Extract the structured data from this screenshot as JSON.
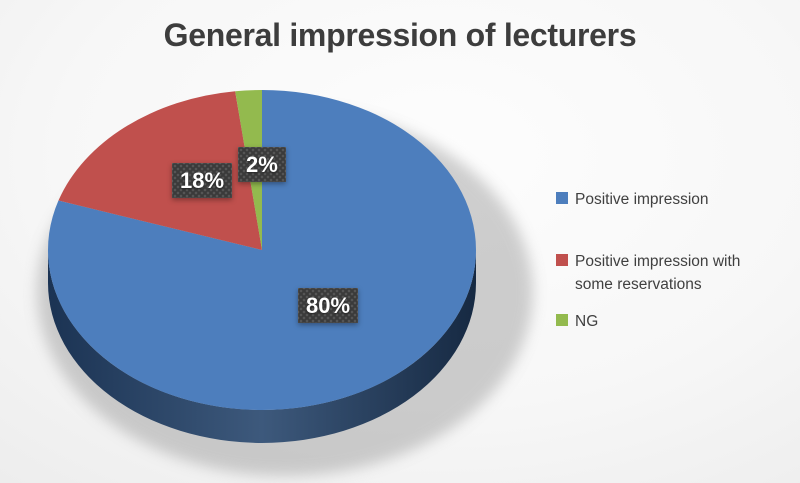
{
  "chart_data": {
    "type": "pie",
    "effect": "3d",
    "title": "General impression of lecturers",
    "legend_position": "right",
    "series": [
      {
        "name": "Positive impression",
        "value": 80,
        "label": "80%",
        "color": "#4d7ebd"
      },
      {
        "name": "Positive impression with some reservations",
        "value": 18,
        "label": "18%",
        "color": "#c0504d"
      },
      {
        "name": "NG",
        "value": 2,
        "label": "2%",
        "color": "#93ba4e"
      }
    ],
    "side_color": "#23426a",
    "label_box_color": "#3a3a3a",
    "label_text_color": "#ffffff",
    "title_color": "#3d3d3d",
    "legend_text_color": "#404040"
  }
}
